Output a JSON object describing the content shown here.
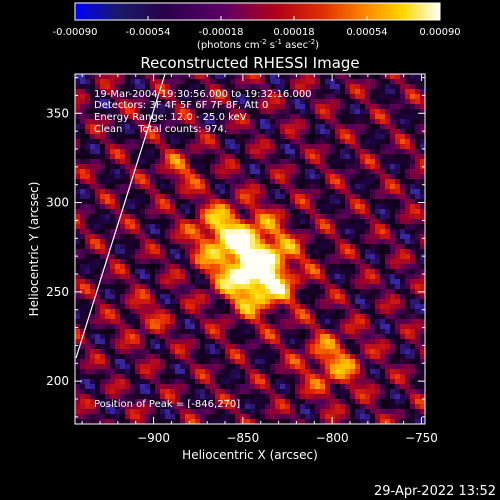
{
  "colorbar": {
    "ticks": [
      "-0.00090",
      "-0.00054",
      "-0.00018",
      "0.00018",
      "0.00054",
      "0.00090"
    ],
    "units_prefix": "(photons cm",
    "units_exp1": "-2",
    "units_mid": " s",
    "units_exp2": "-1",
    "units_mid2": " asec",
    "units_exp3": "-2",
    "units_suffix": ")"
  },
  "title": "Reconstructed RHESSI Image",
  "annotations": {
    "time_range": "19-Mar-2004 19:30:56.000 to 19:32:16.000",
    "detectors": "Detectors: 3F 4F 5F 6F 7F 8F, Att 0",
    "energy_range": "Energy Range: 12.0 - 25.0 keV",
    "clean_counts": "Clean     Total counts: 974.",
    "peak_position": "Position of Peak = [-846,270]"
  },
  "axes": {
    "xlabel": "Heliocentric X (arcsec)",
    "ylabel": "Heliocentric Y (arcsec)",
    "xlim": [
      -944,
      -748
    ],
    "ylim": [
      176,
      372
    ],
    "xticks": [
      -900,
      -850,
      -800,
      -750
    ],
    "yticks": [
      200,
      250,
      300,
      350
    ],
    "xtick_labels": [
      "−900",
      "−850",
      "−800",
      "−750"
    ],
    "ytick_labels": [
      "200",
      "250",
      "300",
      "350"
    ]
  },
  "image": {
    "colormap": "blue-black-red-yellow-white",
    "peak": [
      -846,
      270
    ],
    "limb_visible": true
  },
  "footer": {
    "timestamp": "29-Apr-2022 13:52"
  }
}
